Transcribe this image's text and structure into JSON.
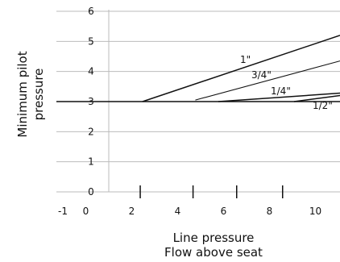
{
  "chart_data": {
    "type": "line",
    "xlabel": [
      "Line pressure",
      "Flow above seat"
    ],
    "ylabel": [
      "Minimum pilot",
      "pressure"
    ],
    "xlim": [
      -1,
      11
    ],
    "ylim": [
      0,
      6
    ],
    "x_ticks": [
      -1,
      0,
      2,
      4,
      6,
      8,
      10
    ],
    "y_ticks": [
      0,
      1,
      2,
      3,
      4,
      5,
      6
    ],
    "x_tick_marks": [
      2.3,
      4.6,
      6.5,
      8.5
    ],
    "grid": "horizontal",
    "series": [
      {
        "name": "1\"",
        "points": [
          [
            2.4,
            3.0
          ],
          [
            11,
            5.2
          ]
        ]
      },
      {
        "name": "3/4\"",
        "points": [
          [
            4.7,
            3.05
          ],
          [
            11,
            4.35
          ]
        ]
      },
      {
        "name": "1/4\"",
        "points": [
          [
            5.7,
            3.0
          ],
          [
            11,
            3.28
          ]
        ]
      },
      {
        "name": "1/2\"",
        "points": [
          [
            9.0,
            3.0
          ],
          [
            11,
            3.2
          ]
        ]
      }
    ],
    "baseline": {
      "points": [
        [
          -1,
          3.0
        ],
        [
          11,
          3.0
        ]
      ]
    }
  }
}
